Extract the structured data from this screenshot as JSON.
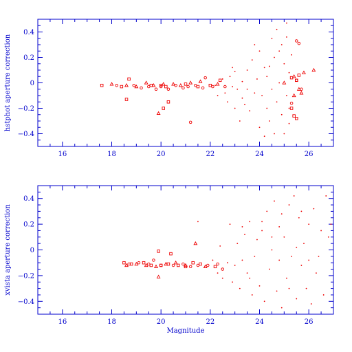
{
  "chart_data": [
    {
      "type": "scatter",
      "title": "",
      "xlabel": "",
      "ylabel": "hstphot aperture correction",
      "xlim": [
        15,
        27
      ],
      "ylim": [
        -0.5,
        0.5
      ],
      "x_ticks": [
        16,
        18,
        20,
        22,
        24,
        26
      ],
      "x_tick_labels": [
        "16",
        "18",
        "20",
        "22",
        "24",
        "26"
      ],
      "y_ticks": [
        -0.4,
        -0.2,
        0,
        0.2,
        0.4
      ],
      "y_tick_labels": [
        "−0.4",
        "−0.2",
        "0",
        "0.2",
        "0.4"
      ],
      "grid": false,
      "marker_color": "#ee0000",
      "axis_color": "#0000cc",
      "series": [
        {
          "marker": "square",
          "points": [
            [
              17.6,
              -0.02
            ],
            [
              18.4,
              -0.03
            ],
            [
              18.6,
              -0.13
            ],
            [
              18.7,
              0.03
            ],
            [
              19.6,
              -0.02
            ],
            [
              20.0,
              -0.02
            ],
            [
              20.2,
              -0.03
            ],
            [
              20.3,
              -0.15
            ],
            [
              20.1,
              -0.2
            ],
            [
              21.0,
              -0.01
            ],
            [
              21.5,
              -0.03
            ],
            [
              22.0,
              -0.02
            ],
            [
              25.3,
              -0.2
            ],
            [
              25.4,
              -0.26
            ],
            [
              25.5,
              -0.28
            ],
            [
              25.5,
              0.02
            ],
            [
              25.3,
              0.04
            ],
            [
              22.4,
              0.02
            ],
            [
              25.6,
              0.06
            ]
          ]
        },
        {
          "marker": "triangle",
          "points": [
            [
              18.0,
              -0.01
            ],
            [
              18.6,
              -0.02
            ],
            [
              19.0,
              -0.03
            ],
            [
              19.4,
              0.0
            ],
            [
              19.7,
              -0.02
            ],
            [
              19.9,
              -0.24
            ],
            [
              20.1,
              -0.01
            ],
            [
              20.5,
              -0.01
            ],
            [
              20.8,
              -0.02
            ],
            [
              21.2,
              0.0
            ],
            [
              21.6,
              0.01
            ],
            [
              22.3,
              -0.01
            ],
            [
              25.0,
              0.0
            ],
            [
              25.4,
              0.05
            ],
            [
              25.6,
              -0.05
            ],
            [
              25.4,
              -0.1
            ],
            [
              25.7,
              -0.08
            ],
            [
              26.2,
              0.1
            ],
            [
              25.8,
              0.08
            ]
          ]
        },
        {
          "marker": "circle",
          "points": [
            [
              18.2,
              -0.02
            ],
            [
              18.9,
              -0.02
            ],
            [
              19.2,
              -0.04
            ],
            [
              19.5,
              -0.03
            ],
            [
              19.8,
              -0.05
            ],
            [
              20.0,
              -0.03
            ],
            [
              20.3,
              -0.05
            ],
            [
              20.6,
              -0.02
            ],
            [
              20.9,
              -0.04
            ],
            [
              21.1,
              -0.03
            ],
            [
              21.2,
              -0.31
            ],
            [
              21.4,
              -0.02
            ],
            [
              21.7,
              -0.04
            ],
            [
              21.8,
              0.04
            ],
            [
              22.1,
              -0.03
            ],
            [
              22.6,
              -0.03
            ],
            [
              25.5,
              0.02
            ],
            [
              25.6,
              0.31
            ],
            [
              25.5,
              0.33
            ],
            [
              25.7,
              -0.05
            ],
            [
              25.3,
              -0.16
            ]
          ]
        },
        {
          "marker": "dot",
          "points": [
            [
              22.2,
              -0.02
            ],
            [
              22.3,
              -0.1
            ],
            [
              22.5,
              0.03
            ],
            [
              22.6,
              -0.08
            ],
            [
              22.7,
              -0.15
            ],
            [
              22.8,
              0.05
            ],
            [
              22.9,
              -0.03
            ],
            [
              23.0,
              -0.2
            ],
            [
              23.0,
              0.09
            ],
            [
              23.1,
              -0.05
            ],
            [
              23.2,
              -0.3
            ],
            [
              23.3,
              0.01
            ],
            [
              23.3,
              -0.12
            ],
            [
              23.5,
              0.1
            ],
            [
              23.5,
              -0.05
            ],
            [
              23.6,
              -0.22
            ],
            [
              23.7,
              0.18
            ],
            [
              23.8,
              -0.08
            ],
            [
              23.9,
              0.03
            ],
            [
              24.0,
              -0.35
            ],
            [
              24.0,
              0.25
            ],
            [
              24.1,
              -0.1
            ],
            [
              24.2,
              0.12
            ],
            [
              24.3,
              -0.2
            ],
            [
              24.3,
              0.05
            ],
            [
              24.4,
              -0.3
            ],
            [
              24.5,
              0.35
            ],
            [
              24.5,
              -0.05
            ],
            [
              24.6,
              0.2
            ],
            [
              24.7,
              -0.15
            ],
            [
              24.7,
              0.42
            ],
            [
              24.8,
              0.0
            ],
            [
              24.9,
              -0.25
            ],
            [
              24.9,
              0.3
            ],
            [
              25.0,
              -0.4
            ],
            [
              25.0,
              0.15
            ],
            [
              25.1,
              -0.1
            ],
            [
              25.1,
              0.47
            ],
            [
              25.2,
              0.08
            ],
            [
              25.2,
              -0.32
            ],
            [
              25.3,
              0.22
            ],
            [
              24.4,
              0.13
            ],
            [
              23.4,
              -0.17
            ],
            [
              24.6,
              -0.4
            ],
            [
              25.1,
              0.36
            ],
            [
              22.9,
              0.12
            ],
            [
              23.8,
              0.3
            ],
            [
              24.2,
              -0.42
            ],
            [
              24.8,
              0.25
            ],
            [
              25.2,
              -0.2
            ]
          ]
        }
      ]
    },
    {
      "type": "scatter",
      "title": "",
      "xlabel": "Magnitude",
      "ylabel": "xvista aperture correction",
      "xlim": [
        15,
        27
      ],
      "ylim": [
        -0.5,
        0.5
      ],
      "x_ticks": [
        16,
        18,
        20,
        22,
        24,
        26
      ],
      "x_tick_labels": [
        "16",
        "18",
        "20",
        "22",
        "24",
        "26"
      ],
      "y_ticks": [
        -0.4,
        -0.2,
        0,
        0.2,
        0.4
      ],
      "y_tick_labels": [
        "−0.4",
        "−0.2",
        "0",
        "0.2",
        "0.4"
      ],
      "grid": false,
      "marker_color": "#ee0000",
      "axis_color": "#0000cc",
      "series": [
        {
          "marker": "square",
          "points": [
            [
              18.5,
              -0.1
            ],
            [
              18.8,
              -0.11
            ],
            [
              19.3,
              -0.1
            ],
            [
              19.6,
              -0.12
            ],
            [
              19.9,
              -0.01
            ],
            [
              20.0,
              -0.12
            ],
            [
              20.3,
              -0.11
            ],
            [
              20.4,
              -0.03
            ],
            [
              20.7,
              -0.12
            ],
            [
              21.0,
              -0.13
            ],
            [
              21.3,
              -0.1
            ],
            [
              21.6,
              -0.11
            ],
            [
              22.2,
              -0.13
            ]
          ]
        },
        {
          "marker": "triangle",
          "points": [
            [
              18.6,
              -0.12
            ],
            [
              19.0,
              -0.11
            ],
            [
              19.4,
              -0.12
            ],
            [
              19.8,
              -0.13
            ],
            [
              19.9,
              -0.21
            ],
            [
              20.2,
              -0.11
            ],
            [
              20.6,
              -0.1
            ],
            [
              21.0,
              -0.12
            ],
            [
              21.4,
              0.05
            ],
            [
              21.8,
              -0.13
            ]
          ]
        },
        {
          "marker": "circle",
          "points": [
            [
              18.7,
              -0.11
            ],
            [
              19.1,
              -0.1
            ],
            [
              19.5,
              -0.11
            ],
            [
              19.7,
              -0.08
            ],
            [
              20.0,
              -0.12
            ],
            [
              20.5,
              -0.12
            ],
            [
              20.9,
              -0.11
            ],
            [
              21.2,
              -0.13
            ],
            [
              21.5,
              -0.12
            ],
            [
              21.9,
              -0.12
            ],
            [
              22.3,
              -0.11
            ],
            [
              22.5,
              -0.15
            ]
          ]
        },
        {
          "marker": "dot",
          "points": [
            [
              21.5,
              0.22
            ],
            [
              22.1,
              -0.08
            ],
            [
              22.3,
              -0.18
            ],
            [
              22.4,
              0.03
            ],
            [
              22.5,
              -0.22
            ],
            [
              22.7,
              -0.1
            ],
            [
              22.8,
              0.2
            ],
            [
              22.9,
              -0.25
            ],
            [
              23.0,
              -0.12
            ],
            [
              23.1,
              0.05
            ],
            [
              23.2,
              -0.3
            ],
            [
              23.3,
              -0.08
            ],
            [
              23.4,
              0.12
            ],
            [
              23.5,
              -0.18
            ],
            [
              23.6,
              0.22
            ],
            [
              23.7,
              -0.35
            ],
            [
              23.8,
              -0.05
            ],
            [
              23.9,
              0.08
            ],
            [
              24.0,
              -0.28
            ],
            [
              24.1,
              0.15
            ],
            [
              24.2,
              -0.4
            ],
            [
              24.3,
              0.3
            ],
            [
              24.4,
              -0.15
            ],
            [
              24.5,
              0.0
            ],
            [
              24.6,
              0.38
            ],
            [
              24.7,
              -0.32
            ],
            [
              24.8,
              0.18
            ],
            [
              24.9,
              -0.45
            ],
            [
              25.0,
              0.1
            ],
            [
              25.1,
              -0.22
            ],
            [
              25.2,
              0.35
            ],
            [
              25.3,
              -0.05
            ],
            [
              25.4,
              0.42
            ],
            [
              25.5,
              -0.38
            ],
            [
              25.6,
              0.25
            ],
            [
              25.7,
              -0.12
            ],
            [
              25.8,
              0.05
            ],
            [
              25.9,
              -0.3
            ],
            [
              26.0,
              0.2
            ],
            [
              26.1,
              -0.42
            ],
            [
              26.2,
              0.32
            ],
            [
              26.3,
              -0.18
            ],
            [
              26.5,
              0.15
            ],
            [
              26.6,
              -0.35
            ],
            [
              26.7,
              0.42
            ],
            [
              26.8,
              0.1
            ],
            [
              26.9,
              0.2
            ],
            [
              24.5,
              0.1
            ],
            [
              23.6,
              -0.22
            ],
            [
              24.8,
              -0.08
            ],
            [
              25.5,
              0.02
            ],
            [
              26.0,
              -0.08
            ],
            [
              25.2,
              -0.3
            ],
            [
              24.1,
              0.22
            ],
            [
              23.3,
              0.18
            ],
            [
              25.7,
              0.3
            ],
            [
              24.9,
              0.28
            ],
            [
              26.4,
              -0.05
            ]
          ]
        }
      ]
    }
  ]
}
